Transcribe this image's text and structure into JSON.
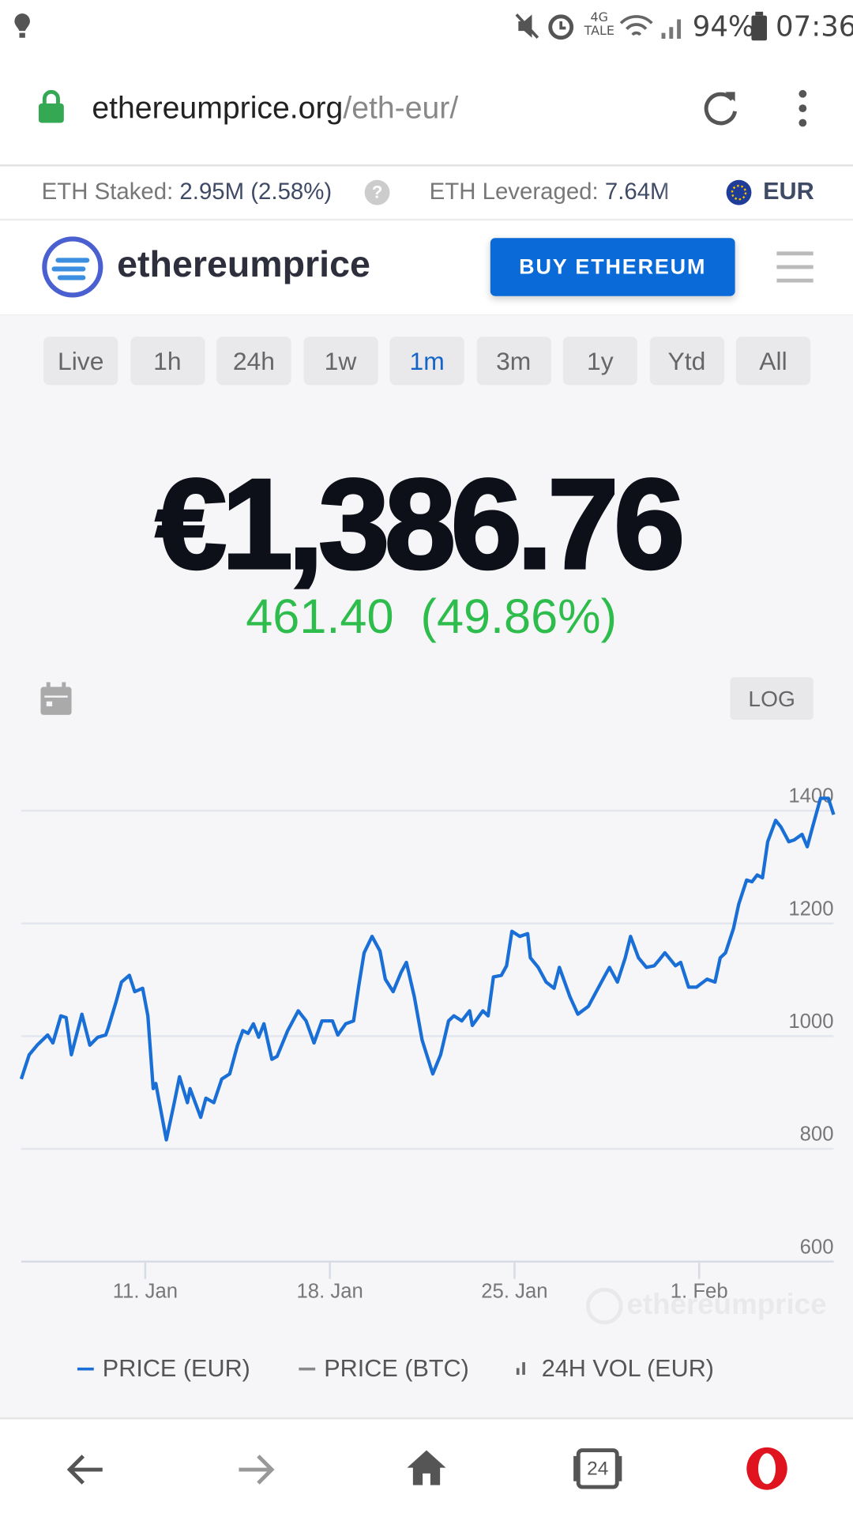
{
  "status_bar": {
    "network": "4G",
    "network_sub": "TALE",
    "battery": "94%",
    "time": "07:36"
  },
  "browser": {
    "url_host": "ethereumprice.org",
    "url_path": "/eth-eur/"
  },
  "ticker": {
    "staked_label": "ETH Staked:",
    "staked_value": "2.95M (2.58%)",
    "leveraged_label": "ETH Leveraged:",
    "leveraged_value": "7.64M",
    "currency": "EUR"
  },
  "header": {
    "logo": "ethereumprice",
    "button": "BUY ETHEREUM"
  },
  "timeframes": [
    "Live",
    "1h",
    "24h",
    "1w",
    "1m",
    "3m",
    "1y",
    "Ytd",
    "All"
  ],
  "active_timeframe": "1m",
  "price": {
    "value": "€1,386.76",
    "change": "461.40",
    "change_pct": "(49.86%)"
  },
  "log_button": "LOG",
  "chart_data": {
    "type": "line",
    "x": [
      6.3,
      6.6,
      6.9,
      7.3,
      7.5,
      7.8,
      8.0,
      8.2,
      8.6,
      8.9,
      9.2,
      9.5,
      9.6,
      9.9,
      10.1,
      10.4,
      10.6,
      10.9,
      11.1,
      11.3,
      11.4,
      11.8,
      12.1,
      12.3,
      12.6,
      12.7,
      13.1,
      13.3,
      13.6,
      13.9,
      14.2,
      14.5,
      14.7,
      14.9,
      15.1,
      15.3,
      15.5,
      15.8,
      16.0,
      16.4,
      16.8,
      17.1,
      17.4,
      17.7,
      18.1,
      18.3,
      18.6,
      18.9,
      19.1,
      19.3,
      19.6,
      19.9,
      20.1,
      20.4,
      20.7,
      20.9,
      21.2,
      21.5,
      21.9,
      22.2,
      22.5,
      22.7,
      23.0,
      23.3,
      23.4,
      23.8,
      24.0,
      24.2,
      24.5,
      24.7,
      24.9,
      25.2,
      25.5,
      25.6,
      25.9,
      26.2,
      26.5,
      26.7,
      27.1,
      27.4,
      27.8,
      28.1,
      28.4,
      28.6,
      28.9,
      29.2,
      29.4,
      29.7,
      30.0,
      30.3,
      30.5,
      30.7,
      31.1,
      31.3,
      31.6,
      31.9,
      32.3,
      32.6,
      32.8,
      33.0,
      33.3,
      33.5,
      33.8,
      34.0,
      34.2,
      34.4,
      34.6,
      34.9,
      35.1,
      35.4,
      35.6,
      35.9,
      36.1,
      36.3,
      36.6,
      36.9,
      37.1
    ],
    "series": [
      {
        "name": "PRICE (EUR)",
        "color": "#1a6fd6",
        "values": [
          924,
          967,
          984,
          1002,
          988,
          1036,
          1033,
          967,
          1039,
          984,
          998,
          1002,
          1015,
          1062,
          1096,
          1108,
          1079,
          1085,
          1036,
          907,
          916,
          816,
          882,
          928,
          882,
          907,
          856,
          890,
          882,
          924,
          933,
          984,
          1010,
          1005,
          1022,
          998,
          1022,
          959,
          964,
          1010,
          1045,
          1027,
          988,
          1027,
          1027,
          1002,
          1022,
          1027,
          1091,
          1148,
          1177,
          1151,
          1101,
          1079,
          1113,
          1131,
          1070,
          993,
          933,
          967,
          1027,
          1036,
          1027,
          1045,
          1019,
          1045,
          1036,
          1105,
          1108,
          1125,
          1186,
          1177,
          1182,
          1139,
          1122,
          1096,
          1085,
          1122,
          1070,
          1039,
          1053,
          1079,
          1105,
          1122,
          1096,
          1139,
          1177,
          1139,
          1122,
          1125,
          1136,
          1148,
          1125,
          1131,
          1087,
          1087,
          1101,
          1096,
          1139,
          1148,
          1191,
          1234,
          1277,
          1274,
          1286,
          1281,
          1345,
          1383,
          1371,
          1345,
          1348,
          1358,
          1336,
          1371,
          1422,
          1422,
          1393
        ]
      }
    ],
    "legend": [
      "PRICE (BTC)",
      "24H VOL (EUR)"
    ],
    "xlim": [
      6.3,
      37.1
    ],
    "xticks": [
      {
        "value": 11,
        "label": "11. Jan"
      },
      {
        "value": 18,
        "label": "18. Jan"
      },
      {
        "value": 25,
        "label": "25. Jan"
      },
      {
        "value": 32,
        "label": "1. Feb"
      }
    ],
    "ylim": [
      600,
      1460
    ],
    "yticks": [
      600,
      800,
      1000,
      1200,
      1400
    ],
    "grid": true
  }
}
